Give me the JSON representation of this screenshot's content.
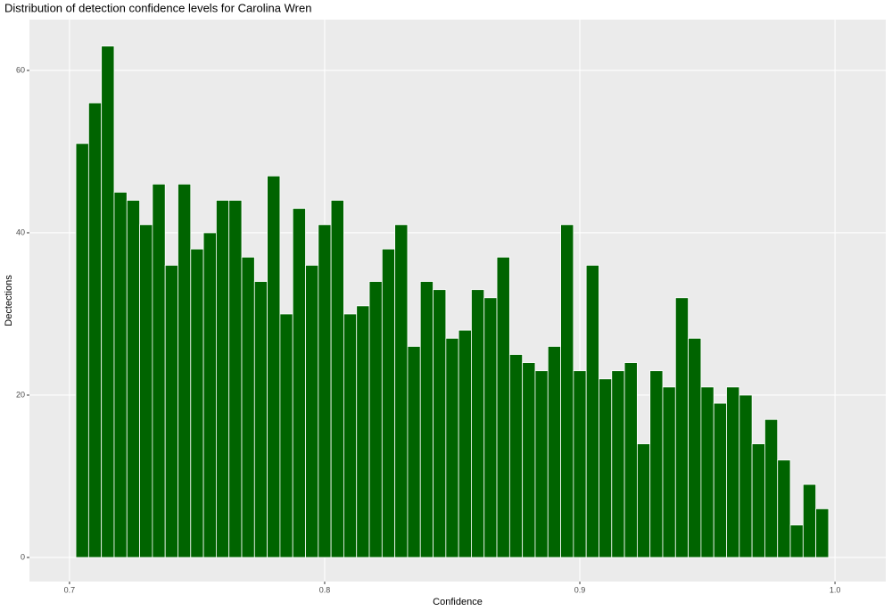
{
  "chart_data": {
    "type": "histogram",
    "title": "Distribution of detection confidence levels for Carolina Wren",
    "x_label": "Confidence",
    "y_label": "Dectections",
    "bins": [
      0.7025,
      0.7075,
      0.7125,
      0.7175,
      0.7225,
      0.7275,
      0.7325,
      0.7375,
      0.7425,
      0.7475,
      0.7525,
      0.7575,
      0.7625,
      0.7675,
      0.7725,
      0.7775,
      0.7825,
      0.7875,
      0.7925,
      0.7975,
      0.8025,
      0.8075,
      0.8125,
      0.8175,
      0.8225,
      0.8275,
      0.8325,
      0.8375,
      0.8425,
      0.8475,
      0.8525,
      0.8575,
      0.8625,
      0.8675,
      0.8725,
      0.8775,
      0.8825,
      0.8875,
      0.8925,
      0.8975,
      0.9025,
      0.9075,
      0.9125,
      0.9175,
      0.9225,
      0.9275,
      0.9325,
      0.9375,
      0.9425,
      0.9475,
      0.9525,
      0.9575,
      0.9625,
      0.9675,
      0.9725,
      0.9775,
      0.9825,
      0.9875,
      0.9925,
      0.9975
    ],
    "values": [
      51,
      56,
      63,
      45,
      44,
      41,
      46,
      36,
      46,
      38,
      40,
      44,
      44,
      37,
      34,
      47,
      30,
      43,
      36,
      41,
      44,
      30,
      31,
      34,
      38,
      41,
      26,
      34,
      33,
      27,
      28,
      33,
      32,
      37,
      25,
      24,
      23,
      26,
      41,
      23,
      36,
      22,
      23,
      24,
      14,
      23,
      21,
      32,
      27,
      21,
      19,
      21,
      20,
      14,
      17,
      12,
      4,
      9,
      6
    ],
    "color": "#006400",
    "xlim": [
      0.6843,
      1.0199
    ],
    "ylim": [
      -2.97,
      66.26
    ],
    "xticks": [
      0.7,
      0.8,
      0.9,
      {
        "value": 1,
        "label": "1.0"
      }
    ],
    "yticks": [
      0,
      20,
      40,
      60
    ],
    "grid": true
  }
}
